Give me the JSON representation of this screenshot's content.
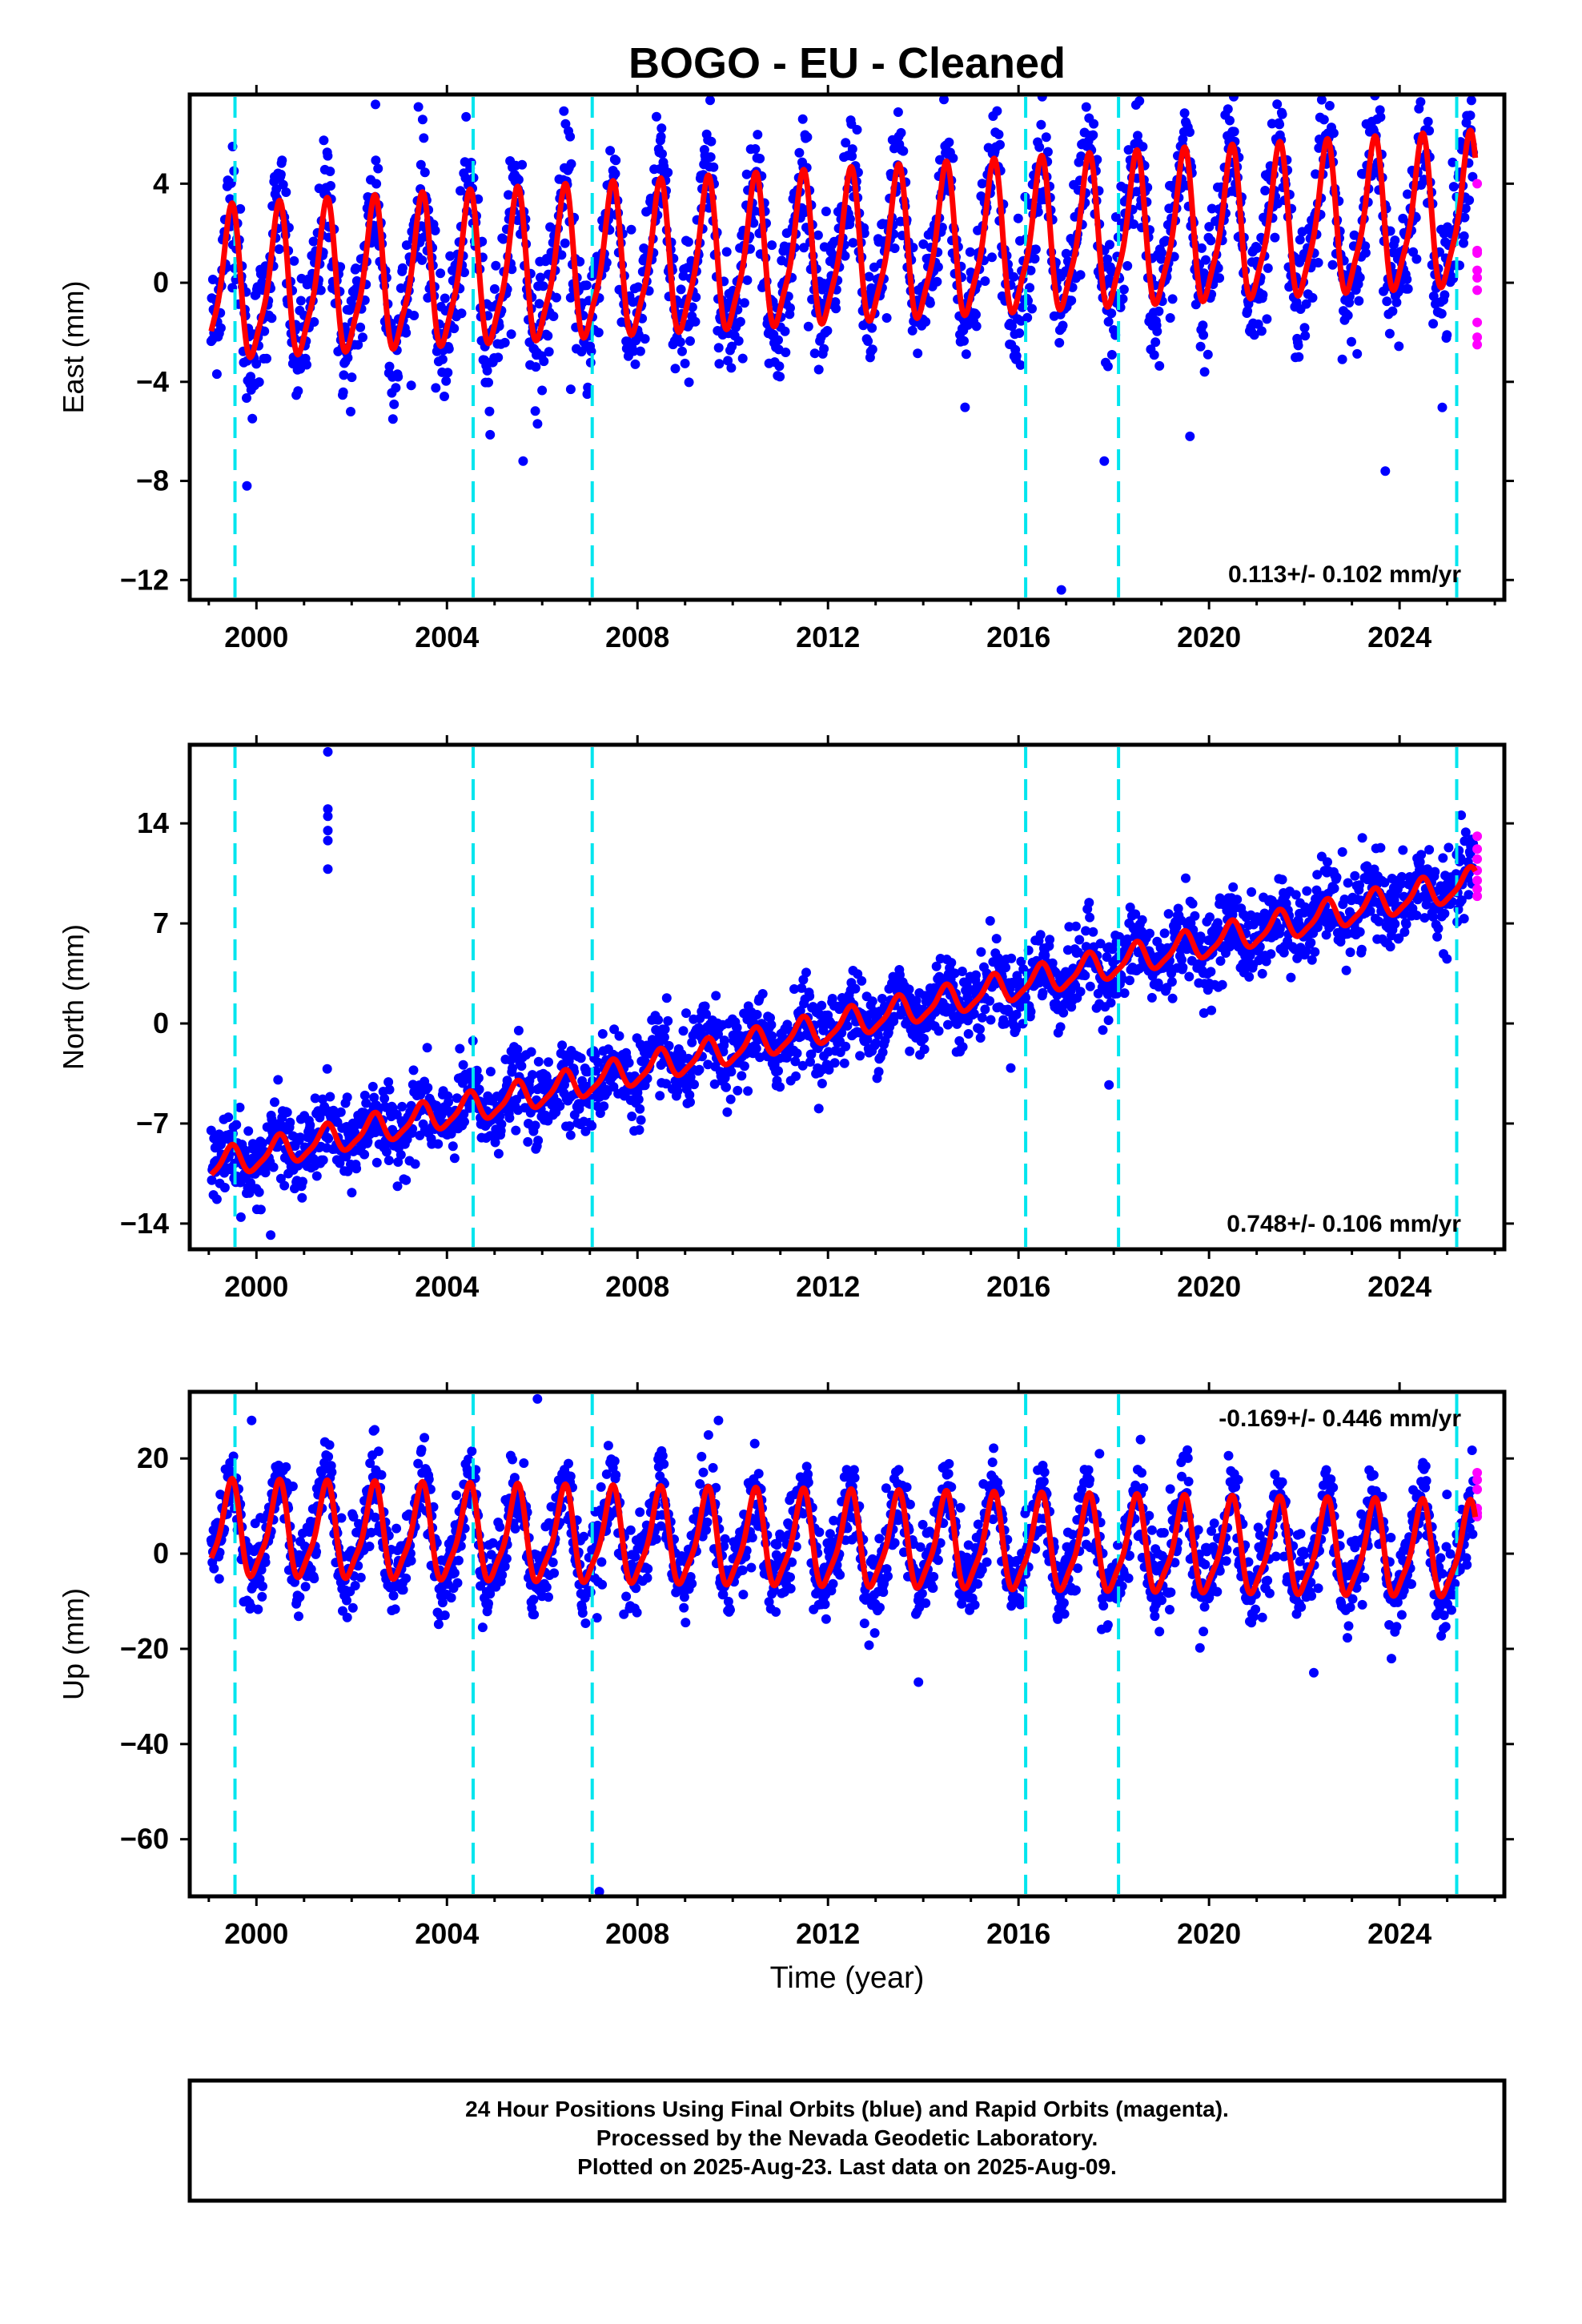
{
  "chart_data": {
    "type": "scatter",
    "title": "BOGO  - EU - Cleaned",
    "xlabel": "Time (year)",
    "xlim": [
      1998.6,
      2026.2
    ],
    "x_ticks": [
      "2000",
      "2004",
      "2008",
      "2012",
      "2016",
      "2020",
      "2024"
    ],
    "x_tick_values": [
      2000,
      2004,
      2008,
      2012,
      2016,
      2020,
      2024
    ],
    "event_lines": [
      1999.55,
      2004.55,
      2007.05,
      2016.15,
      2018.1,
      2025.2
    ],
    "event_color": "#00e5ee",
    "series_colors": {
      "final": "#0000ff",
      "rapid": "#ff00ff",
      "model": "#ff0000"
    },
    "data_start": 1999.05,
    "data_end": 2025.6,
    "panels": [
      {
        "key": "east",
        "ylabel": "East (mm)",
        "ylim": [
          -12.8,
          7.6
        ],
        "y_ticks": [
          "4",
          "0",
          "−4",
          "−8",
          "−12"
        ],
        "y_tick_values": [
          4,
          0,
          -4,
          -8,
          -12
        ],
        "rate_text": "0.113+/- 0.102 mm/yr",
        "rate_position": "bottom-right",
        "trend_mm_per_yr": 0.113,
        "annual_amplitude_mm": 2.9,
        "scatter_mm": 1.3,
        "offset_mm": -0.3,
        "rapid_values": [
          4.0,
          1.2,
          0.5,
          -0.3,
          -1.6,
          -2.2,
          -2.5,
          1.3,
          0.2
        ],
        "outliers": [
          [
            1999.5,
            5.5
          ],
          [
            2002.5,
            7.2
          ],
          [
            2003.4,
            7.1
          ],
          [
            2005.6,
            -7.2
          ],
          [
            2008.4,
            6.7
          ],
          [
            2016.9,
            -12.4
          ],
          [
            2017.8,
            -7.2
          ],
          [
            2019.6,
            -6.2
          ],
          [
            2023.7,
            -7.6
          ],
          [
            1999.8,
            -8.2
          ],
          [
            2006.6,
            -4.3
          ]
        ]
      },
      {
        "key": "north",
        "ylabel": "North (mm)",
        "ylim": [
          -15.8,
          19.5
        ],
        "y_ticks": [
          "14",
          "7",
          "0",
          "−7",
          "−14"
        ],
        "y_tick_values": [
          14,
          7,
          0,
          -7,
          -14
        ],
        "rate_text": "0.748+/- 0.106 mm/yr",
        "rate_position": "bottom-right",
        "trend_mm_per_yr": 0.748,
        "annual_amplitude_mm": 1.0,
        "scatter_mm": 1.4,
        "offset_mm": -10.0,
        "rapid_values": [
          13.1,
          12.2,
          11.5,
          10.7,
          10.0,
          9.4,
          8.9
        ],
        "outliers": [
          [
            2001.5,
            19.0
          ],
          [
            2001.5,
            15.0
          ],
          [
            2001.5,
            14.5
          ],
          [
            2001.5,
            13.5
          ],
          [
            2001.5,
            12.8
          ],
          [
            2001.5,
            10.8
          ],
          [
            2022.8,
            12.0
          ],
          [
            2017.9,
            -4.3
          ],
          [
            2000.3,
            -14.8
          ],
          [
            2006.5,
            -7.2
          ]
        ]
      },
      {
        "key": "up",
        "ylabel": "Up (mm)",
        "ylim": [
          -72,
          34
        ],
        "y_ticks": [
          "20",
          "0",
          "−20",
          "−40",
          "−60"
        ],
        "y_tick_values": [
          20,
          0,
          -20,
          -40,
          -60
        ],
        "rate_text": "-0.169+/- 0.446 mm/yr",
        "rate_position": "top-right",
        "trend_mm_per_yr": -0.169,
        "annual_amplitude_mm": 9.5,
        "scatter_mm": 4.5,
        "offset_mm": 4.5,
        "rapid_values": [
          17.0,
          15.5,
          13.5,
          9.5,
          8.5,
          7.8
        ],
        "outliers": [
          [
            2005.9,
            32.5
          ],
          [
            2007.2,
            -71
          ],
          [
            2009.7,
            28
          ],
          [
            2013.9,
            -27
          ],
          [
            2017.7,
            21
          ],
          [
            2022.2,
            -25
          ],
          [
            1999.9,
            28
          ]
        ]
      }
    ]
  },
  "footer": {
    "line1": "24 Hour Positions Using Final Orbits (blue) and Rapid Orbits (magenta).",
    "line2": "Processed by the Nevada Geodetic Laboratory.",
    "line3": "Plotted on 2025-Aug-23. Last data on 2025-Aug-09."
  }
}
